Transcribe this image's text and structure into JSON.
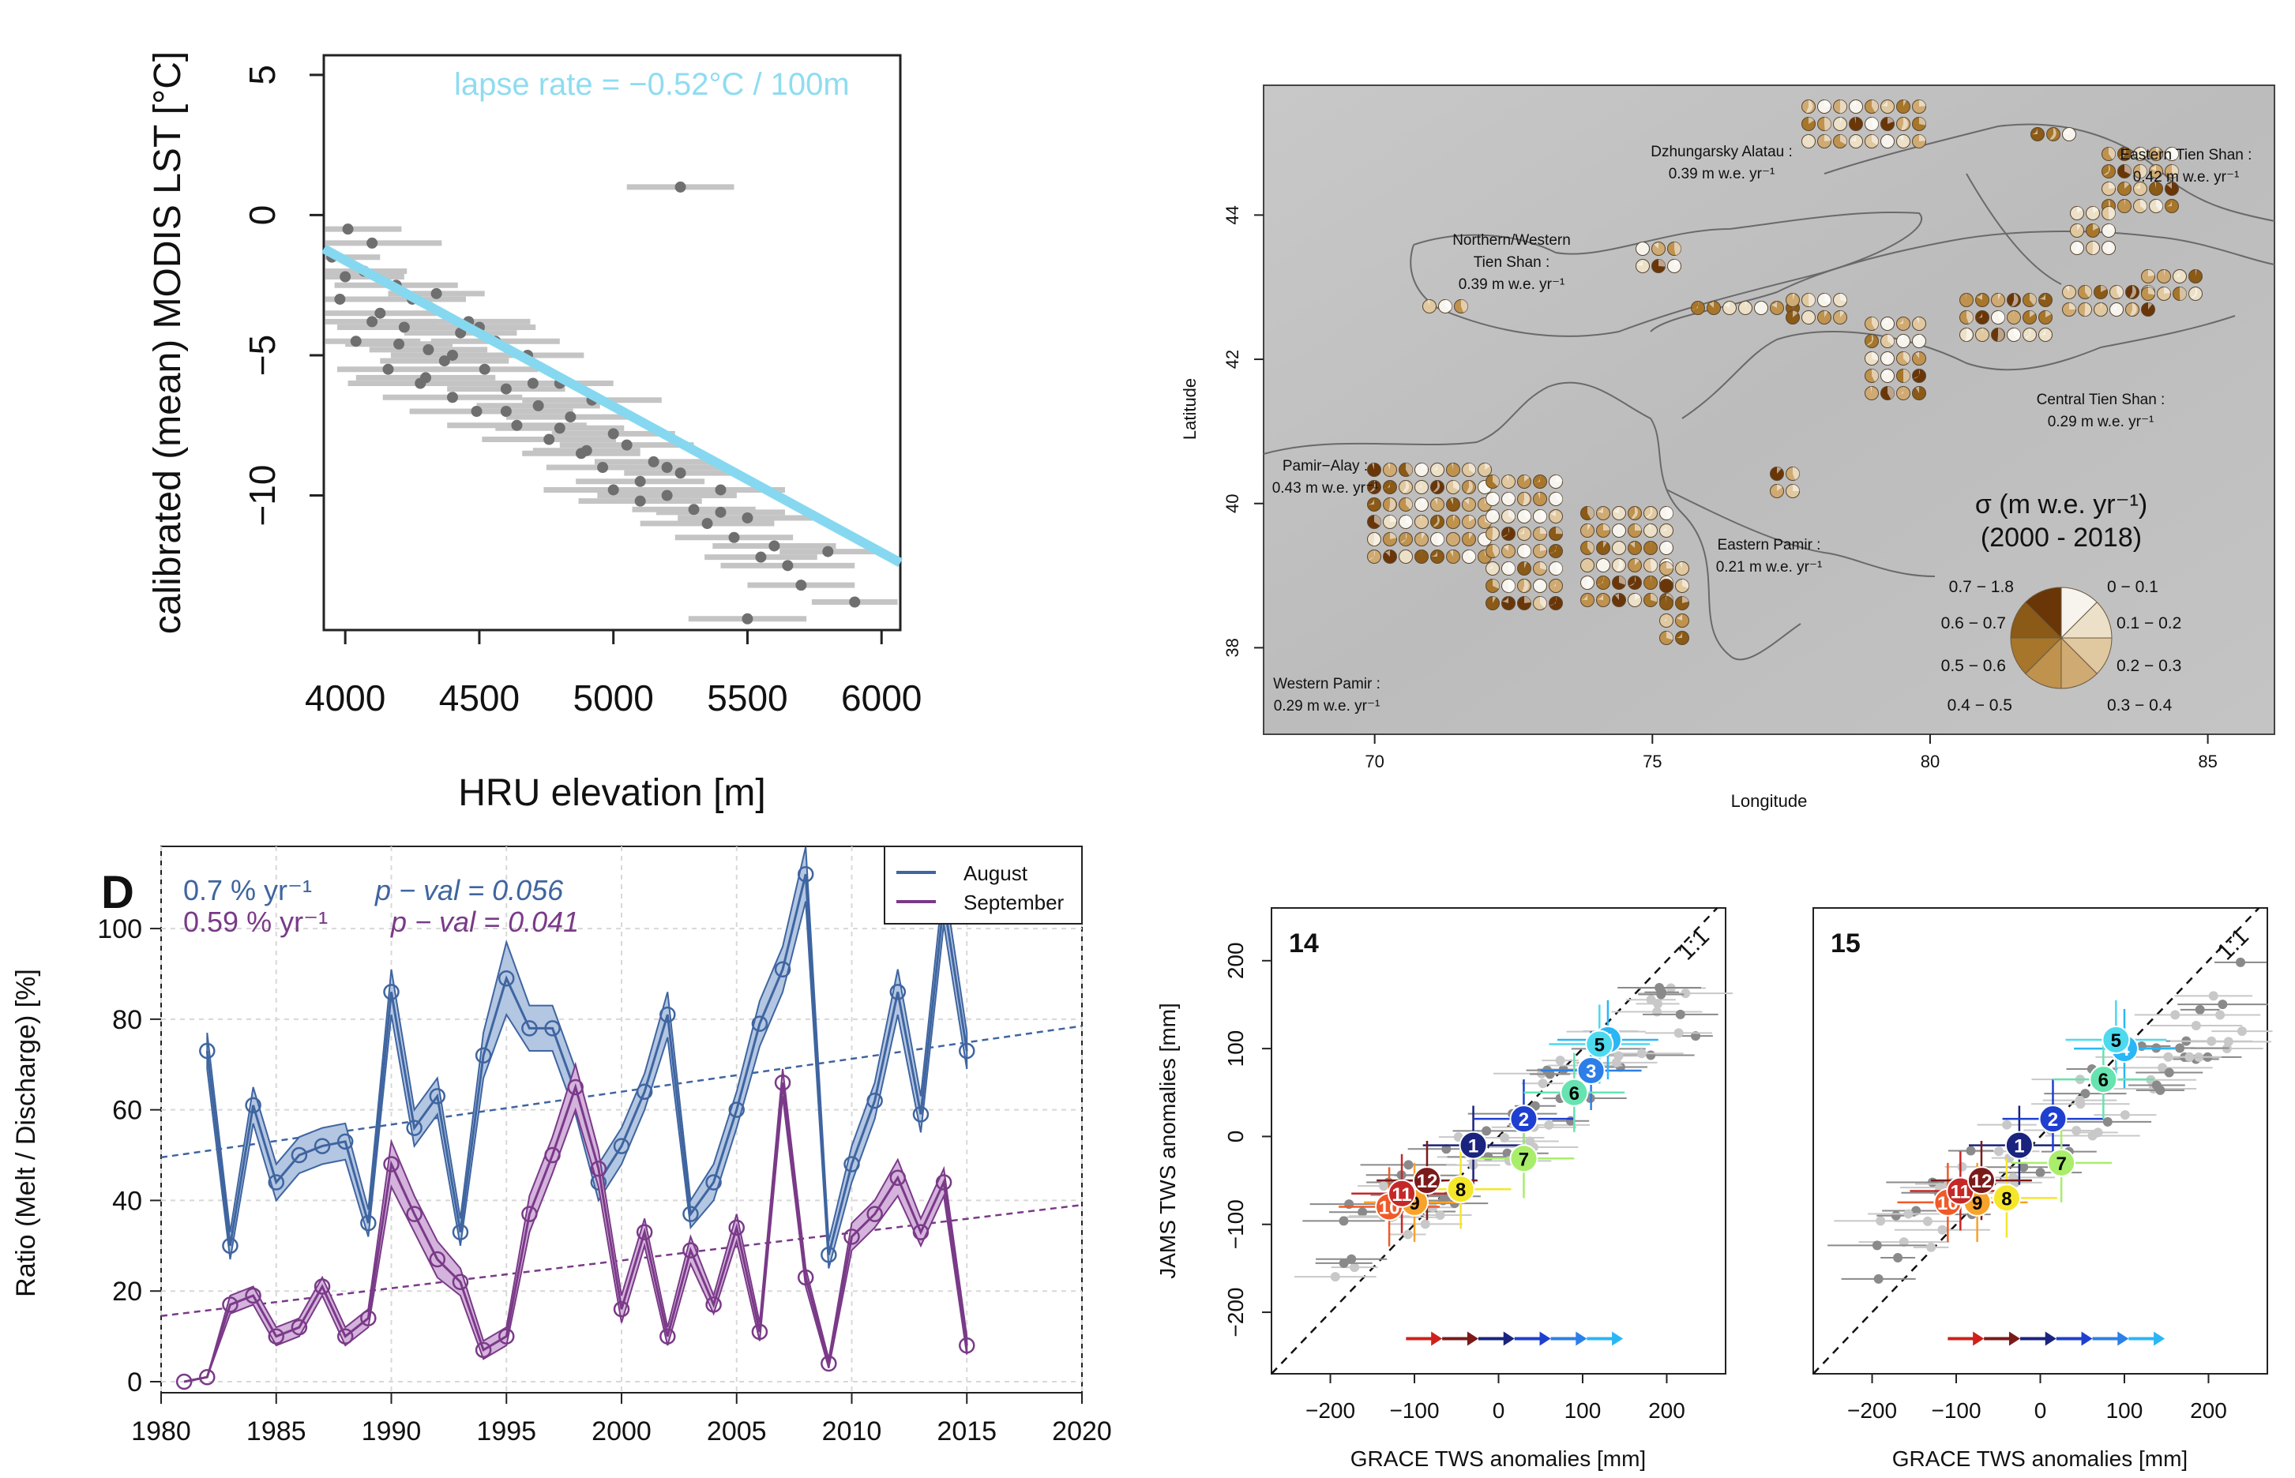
{
  "chart_data": [
    {
      "type": "scatter",
      "panel": "top-left",
      "annotation": "lapse rate = −0.52°C / 100m",
      "annotation_color": "#8fdcf0",
      "xlabel": "HRU elevation [m]",
      "ylabel": "calibrated (mean) MODIS LST [°C]",
      "xlim": [
        3920,
        6070
      ],
      "ylim": [
        -14.8,
        5.7
      ],
      "xticks": [
        "4000",
        "4500",
        "5000",
        "5500",
        "6000"
      ],
      "yticks": [
        "5",
        "0",
        "−5",
        "−10"
      ],
      "xtick_values": [
        4000,
        4500,
        5000,
        5500,
        6000
      ],
      "ytick_values": [
        5,
        0,
        -5,
        -10
      ],
      "fit_line": {
        "x": [
          3920,
          6070
        ],
        "y": [
          -1.2,
          -12.4
        ],
        "color": "#86d8f0"
      },
      "point_color": "#6f6f6f",
      "errorbar_color": "#c4c4c4",
      "x": [
        3950,
        3980,
        4010,
        4040,
        4070,
        4100,
        4130,
        4160,
        4190,
        4220,
        4250,
        4280,
        4310,
        4340,
        4370,
        4400,
        4430,
        4460,
        4490,
        4520,
        4560,
        4600,
        4640,
        4680,
        4720,
        4760,
        4800,
        4840,
        4880,
        4920,
        4960,
        5000,
        5050,
        5100,
        5150,
        5200,
        5250,
        5300,
        5350,
        5400,
        5450,
        5500,
        5550,
        5600,
        5650,
        5700,
        5800,
        5900,
        4000,
        4100,
        4200,
        4300,
        4400,
        4500,
        4600,
        4700,
        4800,
        4900,
        5000,
        5100,
        5200,
        5250,
        5400,
        5500
      ],
      "y": [
        -1.5,
        -3.0,
        -0.5,
        -4.5,
        -2.0,
        -1.0,
        -3.5,
        -5.5,
        -2.5,
        -4.0,
        -3.0,
        -6.0,
        -4.8,
        -2.8,
        -5.2,
        -6.5,
        -4.2,
        -3.8,
        -7.0,
        -5.5,
        -4.5,
        -6.2,
        -7.5,
        -5.0,
        -6.8,
        -8.0,
        -6.0,
        -7.2,
        -8.5,
        -6.6,
        -9.0,
        -7.8,
        -8.2,
        -9.5,
        -8.8,
        -10.0,
        -9.2,
        -10.5,
        -11.0,
        -9.8,
        -11.5,
        -10.8,
        -12.2,
        -11.8,
        -12.5,
        -13.2,
        -12.0,
        -13.8,
        -2.2,
        -3.8,
        -4.6,
        -5.8,
        -5.0,
        -4.0,
        -7.0,
        -6.0,
        -7.6,
        -8.4,
        -9.8,
        -10.2,
        -9.0,
        1.0,
        -10.6,
        -14.4
      ],
      "xerr": [
        180,
        220,
        200,
        240,
        160,
        260,
        210,
        190,
        230,
        250,
        200,
        270,
        220,
        180,
        240,
        260,
        210,
        230,
        250,
        200,
        240,
        220,
        260,
        210,
        230,
        250,
        200,
        240,
        220,
        260,
        210,
        230,
        250,
        240,
        220,
        260,
        210,
        230,
        250,
        240,
        220,
        260,
        210,
        230,
        250,
        200,
        180,
        160,
        220,
        240,
        200,
        260,
        230,
        210,
        250,
        220,
        240,
        200,
        260,
        230,
        210,
        200,
        240,
        220
      ]
    },
    {
      "type": "line",
      "panel": "bottom-left",
      "letter": "D",
      "ylabel": "Ratio (Melt / Discharge) [%]",
      "xlim": [
        1980,
        2020
      ],
      "ylim": [
        0,
        115
      ],
      "xticks": [
        "1980",
        "1985",
        "1990",
        "1995",
        "2000",
        "2005",
        "2010",
        "2015",
        "2020"
      ],
      "yticks": [
        "0",
        "20",
        "40",
        "60",
        "80",
        "100"
      ],
      "xtick_values": [
        1980,
        1985,
        1990,
        1995,
        2000,
        2005,
        2010,
        2015,
        2020
      ],
      "ytick_values": [
        0,
        20,
        40,
        60,
        80,
        100
      ],
      "legend": [
        "August",
        "September"
      ],
      "legend_position": "top-right",
      "aug_trend": "0.7 % yr⁻¹",
      "aug_pval": "p − val = 0.056",
      "sep_trend": "0.59 % yr⁻¹",
      "sep_pval": "p − val = 0.041",
      "series": [
        {
          "name": "August",
          "color": "#3f65a0",
          "fill": "#b3c6e2",
          "x": [
            1982,
            1983,
            1984,
            1985,
            1986,
            1987,
            1988,
            1989,
            1990,
            1991,
            1992,
            1993,
            1994,
            1995,
            1996,
            1997,
            1998,
            1999,
            2000,
            2001,
            2002,
            2003,
            2004,
            2005,
            2006,
            2007,
            2008,
            2009,
            2010,
            2011,
            2012,
            2013,
            2014,
            2015
          ],
          "values": [
            73,
            30,
            61,
            44,
            50,
            52,
            53,
            35,
            86,
            56,
            63,
            33,
            72,
            89,
            78,
            78,
            64,
            44,
            52,
            64,
            81,
            37,
            44,
            60,
            79,
            91,
            112,
            28,
            48,
            62,
            86,
            59,
            106,
            73
          ],
          "band": [
            4,
            3,
            4,
            4,
            4,
            4,
            4,
            3,
            5,
            4,
            4,
            3,
            5,
            8,
            5,
            5,
            5,
            4,
            4,
            4,
            5,
            3,
            4,
            4,
            5,
            5,
            6,
            3,
            4,
            4,
            5,
            4,
            5,
            4
          ],
          "trend": [
            49.5,
            78.5
          ]
        },
        {
          "name": "September",
          "color": "#7a3a88",
          "fill": "#d4b3dc",
          "x": [
            1981,
            1982,
            1983,
            1984,
            1985,
            1986,
            1987,
            1988,
            1989,
            1990,
            1991,
            1992,
            1993,
            1994,
            1995,
            1996,
            1997,
            1998,
            1999,
            2000,
            2001,
            2002,
            2003,
            2004,
            2005,
            2006,
            2007,
            2008,
            2009,
            2010,
            2011,
            2012,
            2013,
            2014,
            2015
          ],
          "values": [
            0,
            1,
            17,
            19,
            10,
            12,
            21,
            10,
            14,
            48,
            37,
            27,
            22,
            7,
            10,
            37,
            50,
            65,
            47,
            16,
            33,
            10,
            29,
            17,
            34,
            11,
            66,
            23,
            4,
            32,
            37,
            45,
            33,
            44,
            8
          ],
          "band": [
            0,
            0,
            2,
            2,
            2,
            2,
            2,
            2,
            2,
            5,
            4,
            4,
            3,
            2,
            2,
            4,
            4,
            5,
            4,
            3,
            3,
            2,
            3,
            2,
            3,
            2,
            3,
            2,
            1,
            3,
            3,
            4,
            3,
            3,
            2
          ],
          "trend": [
            14.5,
            39
          ]
        }
      ]
    },
    {
      "type": "scatter",
      "panel": "bottom-right-14",
      "panel_label": "14",
      "xlabel": "GRACE TWS anomalies [mm]",
      "ylabel": "JAMS TWS anomalies [mm]",
      "xlim": [
        -270,
        270
      ],
      "ylim": [
        -270,
        260
      ],
      "xticks": [
        "−200",
        "−100",
        "0",
        "100",
        "200"
      ],
      "yticks": [
        "200",
        "100",
        "0",
        "−100",
        "−200"
      ],
      "xtick_values": [
        -200,
        -100,
        0,
        100,
        200
      ],
      "ytick_values": [
        200,
        100,
        0,
        -100,
        -200
      ],
      "one_to_one": "1:1",
      "months": [
        {
          "label": "1",
          "x": -30,
          "y": -10,
          "color": "#1a237e",
          "text": "#ffffff"
        },
        {
          "label": "2",
          "x": 30,
          "y": 20,
          "color": "#1f3fd0",
          "text": "#ffffff"
        },
        {
          "label": "3",
          "x": 110,
          "y": 75,
          "color": "#2c7fe8",
          "text": "#ffffff"
        },
        {
          "label": "4",
          "x": 130,
          "y": 110,
          "color": "#29b6f6",
          "text": "#ffffff"
        },
        {
          "label": "5",
          "x": 120,
          "y": 105,
          "color": "#4dd9ee",
          "text": "#000000"
        },
        {
          "label": "6",
          "x": 90,
          "y": 50,
          "color": "#66e3b0",
          "text": "#000000"
        },
        {
          "label": "7",
          "x": 30,
          "y": -25,
          "color": "#a8ee6a",
          "text": "#000000"
        },
        {
          "label": "8",
          "x": -45,
          "y": -60,
          "color": "#f5e62a",
          "text": "#000000"
        },
        {
          "label": "9",
          "x": -100,
          "y": -75,
          "color": "#f7a22a",
          "text": "#000000"
        },
        {
          "label": "10",
          "x": -130,
          "y": -80,
          "color": "#f05a28",
          "text": "#ffffff"
        },
        {
          "label": "11",
          "x": -115,
          "y": -65,
          "color": "#c62828",
          "text": "#ffffff"
        },
        {
          "label": "12",
          "x": -85,
          "y": -50,
          "color": "#7b1a1a",
          "text": "#ffffff"
        }
      ]
    },
    {
      "type": "scatter",
      "panel": "bottom-right-15",
      "panel_label": "15",
      "xlabel": "GRACE TWS anomalies [mm]",
      "ylabel": "",
      "xlim": [
        -270,
        270
      ],
      "ylim": [
        -270,
        260
      ],
      "xticks": [
        "−200",
        "−100",
        "0",
        "100",
        "200"
      ],
      "xtick_values": [
        -200,
        -100,
        0,
        100,
        200
      ],
      "one_to_one": "1:1",
      "months": [
        {
          "label": "1",
          "x": -25,
          "y": -10,
          "color": "#1a237e",
          "text": "#ffffff"
        },
        {
          "label": "2",
          "x": 15,
          "y": 20,
          "color": "#1f3fd0",
          "text": "#ffffff"
        },
        {
          "label": "4",
          "x": 100,
          "y": 100,
          "color": "#29b6f6",
          "text": "#ffffff"
        },
        {
          "label": "5",
          "x": 90,
          "y": 110,
          "color": "#4dd9ee",
          "text": "#000000"
        },
        {
          "label": "6",
          "x": 75,
          "y": 65,
          "color": "#66e3b0",
          "text": "#000000"
        },
        {
          "label": "7",
          "x": 25,
          "y": -30,
          "color": "#a8ee6a",
          "text": "#000000"
        },
        {
          "label": "8",
          "x": -40,
          "y": -70,
          "color": "#f5e62a",
          "text": "#000000"
        },
        {
          "label": "9",
          "x": -75,
          "y": -75,
          "color": "#f7a22a",
          "text": "#000000"
        },
        {
          "label": "10",
          "x": -110,
          "y": -75,
          "color": "#f05a28",
          "text": "#ffffff"
        },
        {
          "label": "11",
          "x": -95,
          "y": -62,
          "color": "#c62828",
          "text": "#ffffff"
        },
        {
          "label": "12",
          "x": -70,
          "y": -50,
          "color": "#7b1a1a",
          "text": "#ffffff"
        }
      ]
    }
  ],
  "map": {
    "xlabel": "Longitude",
    "ylabel": "Latitude",
    "xticks": [
      "70",
      "75",
      "80",
      "85"
    ],
    "yticks": [
      "44",
      "42",
      "40",
      "38"
    ],
    "regions": [
      {
        "name": "Dzhungarsky Alatau :",
        "value": "0.39 m w.e. yr⁻¹"
      },
      {
        "name": "Eastern Tien Shan :",
        "value": "0.42 m w.e. yr⁻¹"
      },
      {
        "name": "Northern/Western Tien Shan :",
        "value": "0.39 m w.e. yr⁻¹"
      },
      {
        "name": "Central Tien Shan :",
        "value": "0.29 m w.e. yr⁻¹"
      },
      {
        "name": "Pamir−Alay :",
        "value": "0.43 m w.e. yr⁻¹"
      },
      {
        "name": "Eastern Pamir :",
        "value": "0.21 m w.e. yr⁻¹"
      },
      {
        "name": "Western Pamir :",
        "value": "0.29 m w.e. yr⁻¹"
      }
    ],
    "legend_title": "σ (m w.e. yr⁻¹)",
    "legend_subtitle": "(2000 - 2018)",
    "legend_classes": [
      {
        "label": "0 − 0.1",
        "color": "#f7f4ee"
      },
      {
        "label": "0.1 − 0.2",
        "color": "#ece0c8"
      },
      {
        "label": "0.2 − 0.3",
        "color": "#e0c8a0"
      },
      {
        "label": "0.3 − 0.4",
        "color": "#cfaa72"
      },
      {
        "label": "0.4 − 0.5",
        "color": "#bf924e"
      },
      {
        "label": "0.5 − 0.6",
        "color": "#a7762a"
      },
      {
        "label": "0.6 − 0.7",
        "color": "#8b5a16"
      },
      {
        "label": "0.7 − 1.8",
        "color": "#6a3608"
      }
    ]
  }
}
